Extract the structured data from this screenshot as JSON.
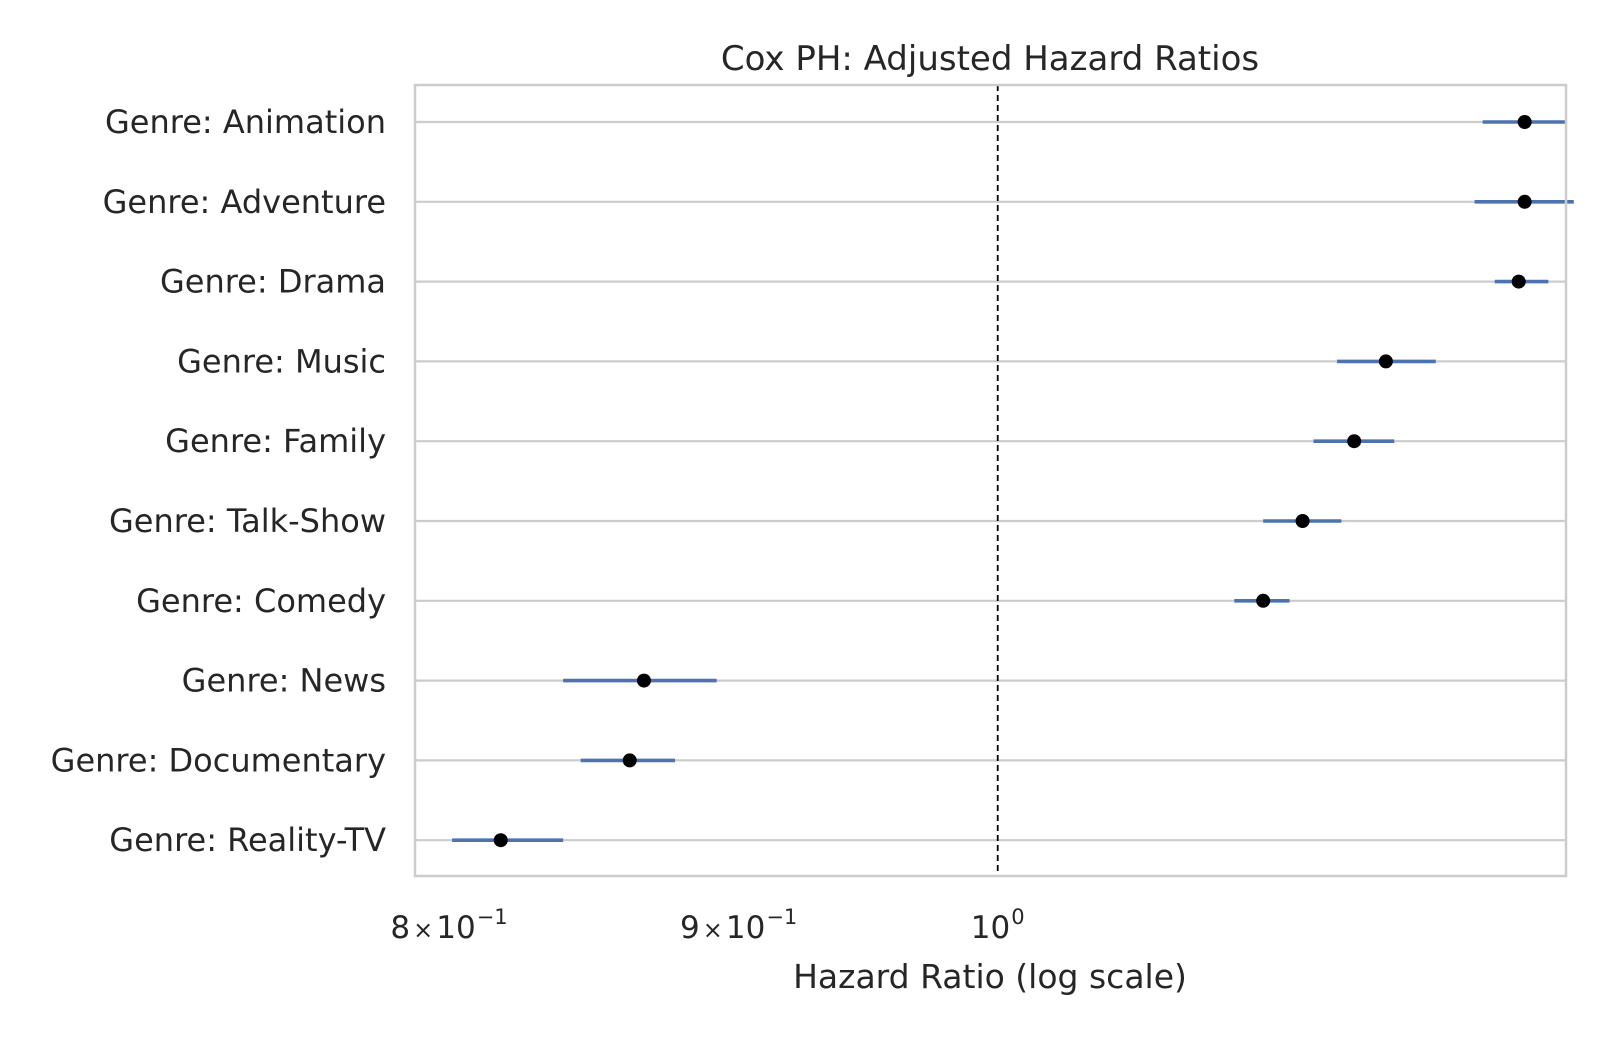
{
  "chart_data": {
    "type": "forest",
    "title": "Cox PH: Adjusted Hazard Ratios",
    "xlabel": "Hazard Ratio (log scale)",
    "ylabel": "",
    "x_scale": "log",
    "xlim": [
      0.789,
      1.26
    ],
    "grid": {
      "horizontal": true,
      "vertical": false
    },
    "reference_line": {
      "x": 1.0,
      "style": "dashed",
      "color": "#000000"
    },
    "x_ticks": [
      {
        "value": 0.8,
        "mantissa": "8",
        "times": "×",
        "base": "10",
        "exp": "−1"
      },
      {
        "value": 0.9,
        "mantissa": "9",
        "times": "×",
        "base": "10",
        "exp": "−1"
      },
      {
        "value": 1.0,
        "mantissa": "",
        "times": "",
        "base": "10",
        "exp": "0"
      }
    ],
    "colors": {
      "ci": "#4c72b0",
      "point": "#000000",
      "grid": "#cccccc",
      "text": "#262626"
    },
    "categories": [
      "Genre: Animation",
      "Genre: Adventure",
      "Genre: Drama",
      "Genre: Music",
      "Genre: Family",
      "Genre: Talk-Show",
      "Genre: Comedy",
      "Genre: News",
      "Genre: Documentary",
      "Genre: Reality-TV"
    ],
    "hr": [
      1.239,
      1.239,
      1.236,
      1.171,
      1.156,
      1.132,
      1.114,
      0.866,
      0.861,
      0.817
    ],
    "ci_lower": [
      1.218,
      1.214,
      1.224,
      1.148,
      1.137,
      1.114,
      1.101,
      0.838,
      0.844,
      0.801
    ],
    "ci_upper": [
      1.26,
      1.264,
      1.251,
      1.195,
      1.175,
      1.15,
      1.126,
      0.892,
      0.877,
      0.838
    ]
  }
}
